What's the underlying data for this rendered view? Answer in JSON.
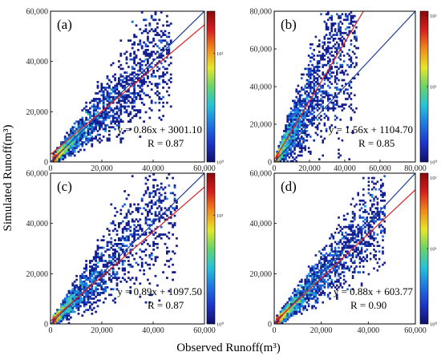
{
  "figure": {
    "xlabel": "Observed Runoff(m³)",
    "ylabel": "Simulated Runoff(m³)"
  },
  "chart_data": [
    {
      "type": "heatmap",
      "panel": "(a)",
      "xlim": [
        0,
        60000
      ],
      "ylim": [
        0,
        60000
      ],
      "xticks": [
        0,
        20000,
        40000,
        60000
      ],
      "yticks": [
        0,
        20000,
        40000,
        60000
      ],
      "xtick_labels": [
        "0",
        "20,000",
        "40,000",
        "60,000"
      ],
      "ytick_labels": [
        "0",
        "20,000",
        "40,000",
        "60,000"
      ],
      "fit": {
        "slope": 0.86,
        "intercept": 3001.1,
        "R": 0.87
      },
      "equation": "y = 0.86x + 3001.10",
      "r_text": "R = 0.87",
      "colorbar": {
        "scale": "log",
        "ticks": [
          "10⁰",
          "10¹"
        ]
      },
      "density": {
        "spread": 0.28,
        "slope": 1.0,
        "n": 2200,
        "maxx": 40000
      }
    },
    {
      "type": "heatmap",
      "panel": "(b)",
      "xlim": [
        0,
        80000
      ],
      "ylim": [
        0,
        80000
      ],
      "xticks": [
        0,
        20000,
        40000,
        60000,
        80000
      ],
      "yticks": [
        0,
        20000,
        40000,
        60000,
        80000
      ],
      "xtick_labels": [
        "0",
        "20,000",
        "40,000",
        "60,000",
        "80,000"
      ],
      "ytick_labels": [
        "0",
        "20,000",
        "40,000",
        "60,000",
        "80,000"
      ],
      "fit": {
        "slope": 1.56,
        "intercept": 1104.7,
        "R": 0.85
      },
      "equation": "y = 1.56x + 1104.70",
      "r_text": "R = 0.85",
      "colorbar": {
        "scale": "log",
        "ticks": [
          "10⁰",
          "10¹",
          "10²"
        ]
      },
      "density": {
        "spread": 0.38,
        "slope": 1.6,
        "n": 2400,
        "maxx": 40000
      }
    },
    {
      "type": "heatmap",
      "panel": "(c)",
      "xlim": [
        0,
        60000
      ],
      "ylim": [
        0,
        60000
      ],
      "xticks": [
        0,
        20000,
        40000,
        60000
      ],
      "yticks": [
        0,
        20000,
        40000,
        60000
      ],
      "xtick_labels": [
        "0",
        "20,000",
        "40,000",
        "60,000"
      ],
      "ytick_labels": [
        "0",
        "20,000",
        "40,000",
        "60,000"
      ],
      "fit": {
        "slope": 0.89,
        "intercept": 1097.5,
        "R": 0.87
      },
      "equation": "y = 0.89x + 1097.50",
      "r_text": "R = 0.87",
      "colorbar": {
        "scale": "log",
        "ticks": [
          "10⁰",
          "10¹"
        ]
      },
      "density": {
        "spread": 0.3,
        "slope": 1.05,
        "n": 2000,
        "maxx": 42000
      }
    },
    {
      "type": "heatmap",
      "panel": "(d)",
      "xlim": [
        0,
        60000
      ],
      "ylim": [
        0,
        60000
      ],
      "xticks": [
        0,
        20000,
        40000,
        60000
      ],
      "yticks": [
        0,
        20000,
        40000,
        60000
      ],
      "xtick_labels": [
        "0",
        "20,000",
        "40,000",
        "60,000"
      ],
      "ytick_labels": [
        "0",
        "20,000",
        "40,000",
        "60,000"
      ],
      "fit": {
        "slope": 0.88,
        "intercept": 603.77,
        "R": 0.9
      },
      "equation": "y = 0.88x + 603.77",
      "r_text": "R = 0.90",
      "colorbar": {
        "scale": "log",
        "ticks": [
          "10⁰",
          "10¹",
          "10²"
        ]
      },
      "density": {
        "spread": 0.24,
        "slope": 0.95,
        "n": 2300,
        "maxx": 40000
      }
    }
  ],
  "colors": {
    "fit_line": "#e02020",
    "one_to_one_line": "#1f3f99",
    "colormap": [
      "#10106a",
      "#1d35c8",
      "#1f78e0",
      "#27c2d8",
      "#6ad36a",
      "#e6e62a",
      "#f08a1c",
      "#d62020",
      "#8a0a0a"
    ]
  }
}
